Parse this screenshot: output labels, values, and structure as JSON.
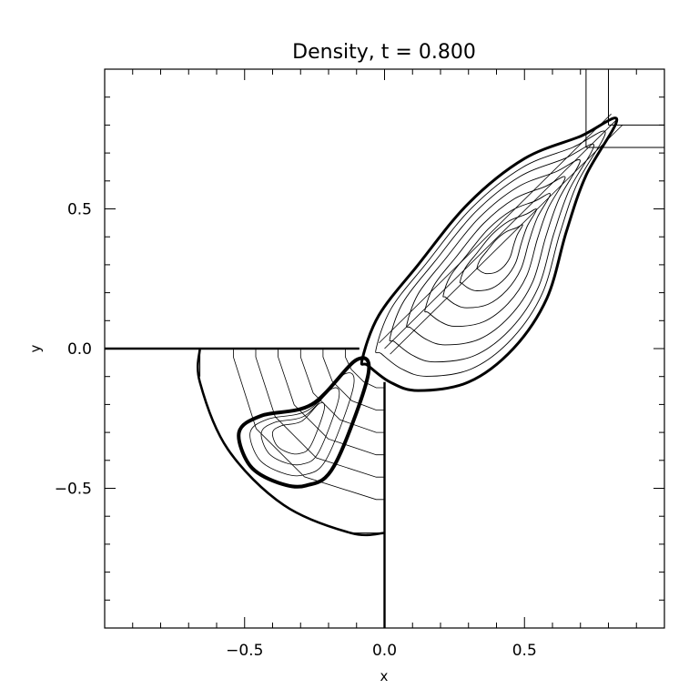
{
  "chart_data": {
    "type": "contour",
    "title": "Density, t = 0.800",
    "xlabel": "x",
    "ylabel": "y",
    "xlim": [
      -1.0,
      1.0
    ],
    "ylim": [
      -1.0,
      1.0
    ],
    "xticks": [
      {
        "value": -0.5,
        "label": "−0.5"
      },
      {
        "value": 0.0,
        "label": "0.0"
      },
      {
        "value": 0.5,
        "label": "0.5"
      }
    ],
    "yticks": [
      {
        "value": -0.5,
        "label": "−0.5"
      },
      {
        "value": 0.0,
        "label": "0.0"
      },
      {
        "value": 0.5,
        "label": "0.5"
      }
    ],
    "minor_tick_step": 0.1,
    "grid": false,
    "line_color": "#000000",
    "background": "#ffffff",
    "features": {
      "solid_boundaries": [
        {
          "name": "wall-horizontal",
          "points": [
            [
              -1.0,
              0.0
            ],
            [
              -0.09,
              0.0
            ]
          ]
        },
        {
          "name": "wall-vertical",
          "points": [
            [
              0.0,
              -0.12
            ],
            [
              0.0,
              -1.0
            ]
          ]
        }
      ],
      "guide_lines": [
        {
          "name": "corner-line-v1",
          "points": [
            [
              0.72,
              1.0
            ],
            [
              0.72,
              0.72
            ]
          ]
        },
        {
          "name": "corner-line-v2",
          "points": [
            [
              0.8,
              1.0
            ],
            [
              0.8,
              0.8
            ]
          ]
        },
        {
          "name": "corner-line-h1",
          "points": [
            [
              1.0,
              0.8
            ],
            [
              0.8,
              0.8
            ]
          ]
        },
        {
          "name": "corner-line-h2",
          "points": [
            [
              1.0,
              0.72
            ],
            [
              0.72,
              0.72
            ]
          ]
        },
        {
          "name": "region-left-edge",
          "points": [
            [
              -0.66,
              0.0
            ],
            [
              -0.66,
              -0.1
            ]
          ]
        },
        {
          "name": "region-bottom-edge",
          "points": [
            [
              0.0,
              -0.66
            ],
            [
              -0.12,
              -0.66
            ]
          ]
        }
      ],
      "shock_front": [
        [
          -0.08,
          -0.04
        ],
        [
          -0.02,
          0.12
        ],
        [
          0.12,
          0.3
        ],
        [
          0.3,
          0.52
        ],
        [
          0.5,
          0.68
        ],
        [
          0.7,
          0.76
        ],
        [
          0.83,
          0.82
        ],
        [
          0.72,
          0.62
        ],
        [
          0.65,
          0.42
        ],
        [
          0.58,
          0.18
        ],
        [
          0.46,
          0.0
        ],
        [
          0.3,
          -0.12
        ],
        [
          0.12,
          -0.15
        ],
        [
          0.02,
          -0.12
        ],
        [
          -0.06,
          -0.06
        ]
      ],
      "quarter_wave": [
        [
          -0.66,
          0.0
        ],
        [
          -0.66,
          -0.12
        ],
        [
          -0.56,
          -0.36
        ],
        [
          -0.36,
          -0.56
        ],
        [
          -0.12,
          -0.66
        ],
        [
          0.0,
          -0.66
        ]
      ],
      "lobe_shell": [
        [
          -0.1,
          -0.04
        ],
        [
          -0.26,
          -0.2
        ],
        [
          -0.44,
          -0.24
        ],
        [
          -0.52,
          -0.3
        ],
        [
          -0.48,
          -0.42
        ],
        [
          -0.38,
          -0.48
        ],
        [
          -0.28,
          -0.49
        ],
        [
          -0.18,
          -0.42
        ],
        [
          -0.06,
          -0.1
        ]
      ],
      "jet": [
        [
          0.0,
          0.0
        ],
        [
          0.83,
          0.82
        ]
      ]
    }
  }
}
